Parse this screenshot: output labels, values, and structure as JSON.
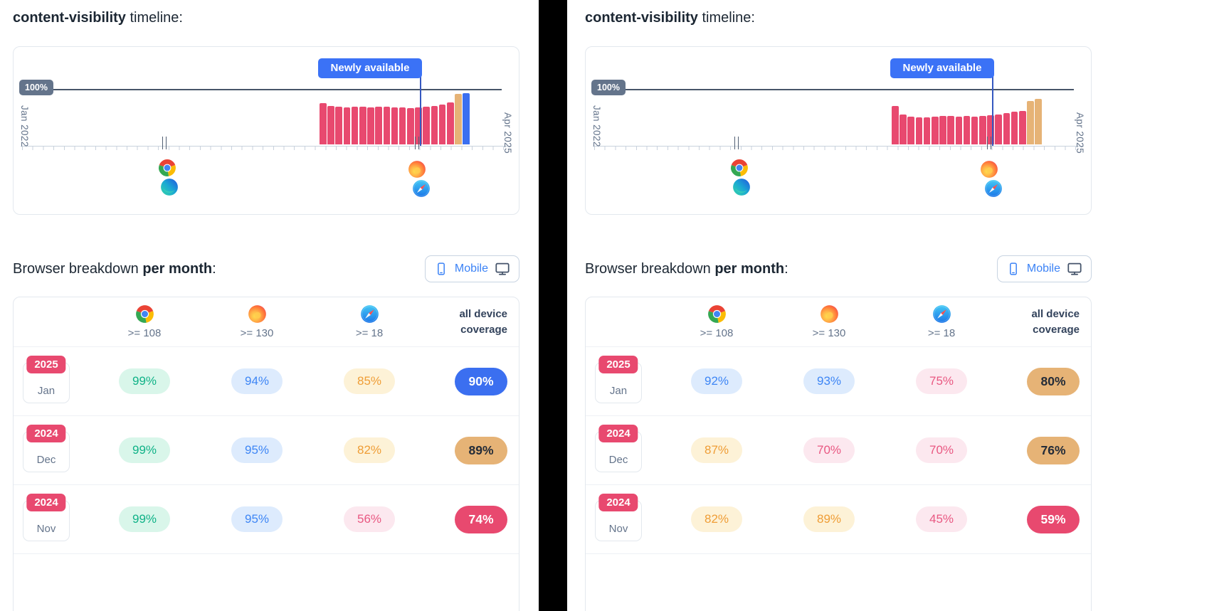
{
  "colors": {
    "bar_pink": "#e8496f",
    "bar_tan": "#e6b376",
    "bar_blue": "#3b6ff0",
    "newly_available_badge": "#3b72f6",
    "hundred_badge": "#64748b",
    "pill_green_text": "#0fb287",
    "pill_green_bg": "#d9f6ea",
    "pill_blue_text": "#3e86f5",
    "pill_blue_bg": "#ddebfd",
    "pill_orange_text": "#ef9d36",
    "pill_orange_bg": "#fdf2d7",
    "pill_pink_text": "#e95882",
    "pill_pink_bg": "#fce8ef",
    "coverage_blue_bg": "#3b6ff0",
    "coverage_tan_bg": "#e6b376",
    "coverage_pink_bg": "#e8496f",
    "year_badge_bg": "#e8496f",
    "toggle_active_text": "#3b82f6",
    "divider": "#000000"
  },
  "chart_data": [
    {
      "type": "bar",
      "title": "content-visibility timeline (left panel)",
      "x_start": "Jan 2022",
      "x_end": "Apr 2025",
      "reference_line": {
        "label": "100%",
        "value": 100
      },
      "annotation": "Newly available",
      "unit": "percent coverage",
      "bars": [
        {
          "value": 72,
          "color": "pink"
        },
        {
          "value": 67,
          "color": "pink"
        },
        {
          "value": 66,
          "color": "pink"
        },
        {
          "value": 65,
          "color": "pink"
        },
        {
          "value": 66,
          "color": "pink"
        },
        {
          "value": 66,
          "color": "pink"
        },
        {
          "value": 65,
          "color": "pink"
        },
        {
          "value": 66,
          "color": "pink"
        },
        {
          "value": 66,
          "color": "pink"
        },
        {
          "value": 65,
          "color": "pink"
        },
        {
          "value": 65,
          "color": "pink"
        },
        {
          "value": 64,
          "color": "pink"
        },
        {
          "value": 65,
          "color": "pink"
        },
        {
          "value": 66,
          "color": "pink"
        },
        {
          "value": 68,
          "color": "pink"
        },
        {
          "value": 70,
          "color": "pink"
        },
        {
          "value": 74,
          "color": "pink"
        },
        {
          "value": 89,
          "color": "tan"
        },
        {
          "value": 90,
          "color": "blue"
        }
      ]
    },
    {
      "type": "bar",
      "title": "content-visibility timeline (right panel)",
      "x_start": "Jan 2022",
      "x_end": "Apr 2025",
      "reference_line": {
        "label": "100%",
        "value": 100
      },
      "annotation": "Newly available",
      "unit": "percent coverage",
      "bars": [
        {
          "value": 68,
          "color": "pink"
        },
        {
          "value": 52,
          "color": "pink"
        },
        {
          "value": 49,
          "color": "pink"
        },
        {
          "value": 48,
          "color": "pink"
        },
        {
          "value": 48,
          "color": "pink"
        },
        {
          "value": 49,
          "color": "pink"
        },
        {
          "value": 50,
          "color": "pink"
        },
        {
          "value": 50,
          "color": "pink"
        },
        {
          "value": 49,
          "color": "pink"
        },
        {
          "value": 50,
          "color": "pink"
        },
        {
          "value": 49,
          "color": "pink"
        },
        {
          "value": 50,
          "color": "pink"
        },
        {
          "value": 51,
          "color": "pink"
        },
        {
          "value": 53,
          "color": "pink"
        },
        {
          "value": 55,
          "color": "pink"
        },
        {
          "value": 57,
          "color": "pink"
        },
        {
          "value": 59,
          "color": "pink"
        },
        {
          "value": 76,
          "color": "tan"
        },
        {
          "value": 80,
          "color": "tan"
        }
      ]
    }
  ],
  "panels": [
    {
      "title": {
        "feature": "content-visibility",
        "suffix": " timeline:"
      },
      "timeline": {
        "hundred_label": "100%",
        "newly_available_label": "Newly available",
        "start_label": "Jan 2022",
        "end_label": "Apr 2025"
      },
      "breakdown": {
        "heading_prefix": "Browser breakdown ",
        "heading_bold": "per month",
        "heading_suffix": ":",
        "toggle": {
          "mobile_label": "Mobile"
        },
        "table": {
          "browsers": [
            {
              "name": "chrome",
              "version": ">= 108"
            },
            {
              "name": "firefox",
              "version": ">= 130"
            },
            {
              "name": "safari",
              "version": ">= 18"
            }
          ],
          "coverage_header_line1": "all device",
          "coverage_header_line2": "coverage",
          "rows": [
            {
              "year": "2025",
              "month": "Jan",
              "cells": [
                {
                  "value": "99%",
                  "tone": "green"
                },
                {
                  "value": "94%",
                  "tone": "blue"
                },
                {
                  "value": "85%",
                  "tone": "orange"
                }
              ],
              "coverage": {
                "value": "90%",
                "tone": "blue"
              }
            },
            {
              "year": "2024",
              "month": "Dec",
              "cells": [
                {
                  "value": "99%",
                  "tone": "green"
                },
                {
                  "value": "95%",
                  "tone": "blue"
                },
                {
                  "value": "82%",
                  "tone": "orange"
                }
              ],
              "coverage": {
                "value": "89%",
                "tone": "tan"
              }
            },
            {
              "year": "2024",
              "month": "Nov",
              "cells": [
                {
                  "value": "99%",
                  "tone": "green"
                },
                {
                  "value": "95%",
                  "tone": "blue"
                },
                {
                  "value": "56%",
                  "tone": "pink"
                }
              ],
              "coverage": {
                "value": "74%",
                "tone": "pink"
              }
            }
          ]
        }
      }
    },
    {
      "title": {
        "feature": "content-visibility",
        "suffix": " timeline:"
      },
      "timeline": {
        "hundred_label": "100%",
        "newly_available_label": "Newly available",
        "start_label": "Jan 2022",
        "end_label": "Apr 2025"
      },
      "breakdown": {
        "heading_prefix": "Browser breakdown ",
        "heading_bold": "per month",
        "heading_suffix": ":",
        "toggle": {
          "mobile_label": "Mobile"
        },
        "table": {
          "browsers": [
            {
              "name": "chrome",
              "version": ">= 108"
            },
            {
              "name": "firefox",
              "version": ">= 130"
            },
            {
              "name": "safari",
              "version": ">= 18"
            }
          ],
          "coverage_header_line1": "all device",
          "coverage_header_line2": "coverage",
          "rows": [
            {
              "year": "2025",
              "month": "Jan",
              "cells": [
                {
                  "value": "92%",
                  "tone": "blue"
                },
                {
                  "value": "93%",
                  "tone": "blue"
                },
                {
                  "value": "75%",
                  "tone": "pink"
                }
              ],
              "coverage": {
                "value": "80%",
                "tone": "tan"
              }
            },
            {
              "year": "2024",
              "month": "Dec",
              "cells": [
                {
                  "value": "87%",
                  "tone": "orange"
                },
                {
                  "value": "70%",
                  "tone": "pink"
                },
                {
                  "value": "70%",
                  "tone": "pink"
                }
              ],
              "coverage": {
                "value": "76%",
                "tone": "tan"
              }
            },
            {
              "year": "2024",
              "month": "Nov",
              "cells": [
                {
                  "value": "82%",
                  "tone": "orange"
                },
                {
                  "value": "89%",
                  "tone": "orange"
                },
                {
                  "value": "45%",
                  "tone": "pink"
                }
              ],
              "coverage": {
                "value": "59%",
                "tone": "pink"
              }
            }
          ]
        }
      }
    }
  ]
}
